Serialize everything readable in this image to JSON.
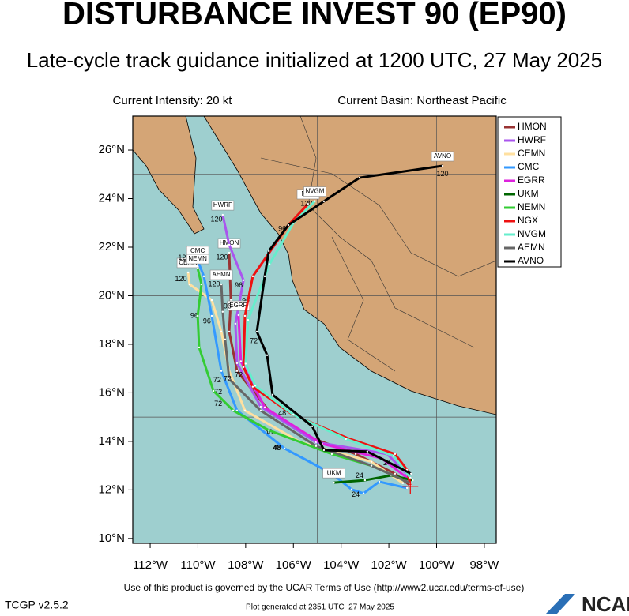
{
  "header": {
    "title": "DISTURBANCE INVEST 90 (EP90)",
    "subtitle": "Late-cycle track guidance initialized at 1200 UTC, 27 May 2025",
    "intensity": "Current Intensity: 20 kt",
    "basin": "Current Basin: Northeast Pacific"
  },
  "map": {
    "lon_lim": [
      -112.73,
      -97.5
    ],
    "lat_lim": [
      9.8,
      27.4
    ],
    "xticks": [
      {
        "value": -112,
        "label": "112°W"
      },
      {
        "value": -110,
        "label": "110°W"
      },
      {
        "value": -108,
        "label": "108°W"
      },
      {
        "value": -106,
        "label": "106°W"
      },
      {
        "value": -104,
        "label": "104°W"
      },
      {
        "value": -102,
        "label": "102°W"
      },
      {
        "value": -100,
        "label": "100°W"
      },
      {
        "value": -98,
        "label": "98°W"
      }
    ],
    "yticks": [
      {
        "value": 10,
        "label": "10°N"
      },
      {
        "value": 12,
        "label": "12°N"
      },
      {
        "value": 14,
        "label": "14°N"
      },
      {
        "value": 16,
        "label": "16°N"
      },
      {
        "value": 18,
        "label": "18°N"
      },
      {
        "value": 20,
        "label": "20°N"
      },
      {
        "value": 22,
        "label": "22°N"
      },
      {
        "value": 24,
        "label": "24°N"
      },
      {
        "value": 26,
        "label": "26°N"
      }
    ],
    "grid_lon": [
      -110,
      -105,
      -100
    ],
    "grid_lat": [
      15,
      20,
      25
    ],
    "initial": {
      "lon": -101.1,
      "lat": 12.15
    },
    "models": [
      {
        "name": "HMON",
        "color": "#993333",
        "lon": [
          -101.1,
          -101.74,
          -103.39,
          -105.21,
          -107.03,
          -108.36,
          -108.69,
          -108.62,
          -108.69
        ],
        "lat": [
          12.18,
          12.67,
          13.48,
          14.13,
          15.27,
          16.9,
          18.52,
          19.82,
          21.77
        ],
        "taus": [
          {
            "text": "120",
            "lon": -108.99,
            "lat": 21.58
          },
          {
            "text": "96",
            "lon": -107.99,
            "lat": 19.79
          }
        ]
      },
      {
        "name": "HWRF",
        "color": "#aa55ee",
        "lon": [
          -101.1,
          -102.07,
          -105.05,
          -107.37,
          -108.36,
          -108.43,
          -108.09,
          -108.69,
          -108.96
        ],
        "lat": [
          12.5,
          13.48,
          13.97,
          15.43,
          17.22,
          18.85,
          20.64,
          22.1,
          23.33
        ],
        "taus": [
          {
            "text": "120",
            "lon": -109.22,
            "lat": 23.14
          },
          {
            "text": "96",
            "lon": -108.29,
            "lat": 20.41
          },
          {
            "text": "72",
            "lon": -108.29,
            "lat": 16.73
          }
        ]
      },
      {
        "name": "CEMN",
        "color": "#ffe0a0",
        "lon": [
          -101.41,
          -102.73,
          -105.71,
          -108.03,
          -108.69,
          -109.02,
          -109.42,
          -110.35,
          -110.41
        ],
        "lat": [
          12.28,
          13.16,
          13.97,
          15.27,
          16.9,
          18.52,
          19.82,
          20.47,
          20.96
        ],
        "taus": [
          {
            "text": "120",
            "lon": -110.71,
            "lat": 20.67
          },
          {
            "text": "96",
            "lon": -109.62,
            "lat": 18.94
          },
          {
            "text": "72",
            "lon": -109.19,
            "lat": 16.51
          },
          {
            "text": "48",
            "lon": -107.03,
            "lat": 14.36
          },
          {
            "text": "24",
            "lon": -103.23,
            "lat": 12.57
          }
        ]
      },
      {
        "name": "CMC",
        "color": "#3399ff",
        "lon": [
          -101.24,
          -102.4,
          -103.06,
          -103.56,
          -104.39,
          -106.37,
          -108.36,
          -109.02,
          -109.42,
          -109.75,
          -110.01
        ],
        "lat": [
          12.08,
          12.34,
          11.86,
          12.02,
          12.67,
          13.71,
          15.27,
          16.9,
          19.17,
          20.8,
          21.45
        ],
        "taus": [
          {
            "text": "120",
            "lon": -110.58,
            "lat": 21.55
          },
          {
            "text": "96",
            "lon": -110.15,
            "lat": 19.17
          },
          {
            "text": "72",
            "lon": -109.15,
            "lat": 16.02
          },
          {
            "text": "48",
            "lon": -106.67,
            "lat": 13.74
          },
          {
            "text": "24",
            "lon": -103.39,
            "lat": 11.79
          }
        ]
      },
      {
        "name": "EGRR",
        "color": "#dd22dd",
        "lon": [
          -101.1,
          -102.3,
          -104.8,
          -107.2,
          -108.2,
          -108.3
        ],
        "lat": [
          12.4,
          13.3,
          13.9,
          15.4,
          17.3,
          19.2
        ],
        "taus": []
      },
      {
        "name": "UKM",
        "color": "#006600",
        "lon": [
          -101.0,
          -101.9,
          -103.0,
          -104.3
        ],
        "lat": [
          12.4,
          12.6,
          12.4,
          12.3
        ],
        "taus": []
      },
      {
        "name": "NEMN",
        "color": "#33cc33",
        "lon": [
          -101.1,
          -102.73,
          -104.39,
          -107.03,
          -108.52,
          -109.35,
          -109.95,
          -110.01,
          -109.85,
          -110.01
        ],
        "lat": [
          12.28,
          13.0,
          13.48,
          14.46,
          15.27,
          16.08,
          17.87,
          19.17,
          20.47,
          21.12
        ],
        "taus": [
          {
            "text": "72",
            "lon": -109.15,
            "lat": 15.53
          },
          {
            "text": "48",
            "lon": -106.7,
            "lat": 13.71
          }
        ]
      },
      {
        "name": "NGX",
        "color": "#ee1111",
        "lon": [
          -101.1,
          -101.24,
          -101.74,
          -103.72,
          -106.04,
          -107.7,
          -108.09,
          -108.03,
          -107.7,
          -106.21,
          -105.38
        ],
        "lat": [
          12.18,
          12.83,
          13.48,
          14.13,
          15.11,
          16.25,
          17.06,
          19.17,
          20.8,
          22.91,
          23.79
        ],
        "taus": [
          {
            "text": "120",
            "lon": -105.45,
            "lat": 23.79
          }
        ]
      },
      {
        "name": "NVGM",
        "color": "#66eecc",
        "lon": [
          -101.1,
          -101.8,
          -103.8,
          -106.0,
          -107.6,
          -108.0,
          -107.9,
          -107.0,
          -106.0,
          -105.1
        ],
        "lat": [
          12.5,
          13.4,
          14.1,
          15.1,
          16.3,
          17.2,
          19.0,
          21.3,
          23.0,
          23.9
        ],
        "taus": []
      },
      {
        "name": "AEMN",
        "color": "#666666",
        "lon": [
          -101.1,
          -102.73,
          -105.05,
          -107.37,
          -108.69,
          -108.86,
          -108.96,
          -109.02
        ],
        "lat": [
          12.28,
          13.0,
          13.81,
          15.27,
          16.57,
          18.2,
          19.34,
          20.47
        ],
        "taus": [
          {
            "text": "120",
            "lon": -109.32,
            "lat": 20.47
          },
          {
            "text": "96",
            "lon": -108.76,
            "lat": 19.56
          },
          {
            "text": "72",
            "lon": -108.76,
            "lat": 16.57
          }
        ]
      },
      {
        "name": "AVNO",
        "color": "#000000",
        "lon": [
          -101.07,
          -102.9,
          -104.72,
          -105.21,
          -106.87,
          -107.1,
          -107.53,
          -107.2,
          -107.03,
          -106.21,
          -104.72,
          -103.23,
          -99.75
        ],
        "lat": [
          12.67,
          13.58,
          13.64,
          14.62,
          15.92,
          17.55,
          18.52,
          20.8,
          21.84,
          22.91,
          23.89,
          24.86,
          25.35
        ],
        "taus": [
          {
            "text": "120",
            "lon": -99.75,
            "lat": 25.0
          },
          {
            "text": "96",
            "lon": -106.47,
            "lat": 22.75
          },
          {
            "text": "72",
            "lon": -107.66,
            "lat": 18.13
          },
          {
            "text": "48",
            "lon": -106.47,
            "lat": 15.14
          },
          {
            "text": "24",
            "lon": -102.07,
            "lat": 13.09
          }
        ]
      }
    ]
  },
  "footer": {
    "terms": "Use of this product is governed by the UCAR Terms of Use (http://www2.ucar.edu/terms-of-use)",
    "version": "TCGP v2.5.2",
    "generated": "Plot generated at 2351 UTC  27 May 2025",
    "logo": "NCAR"
  }
}
